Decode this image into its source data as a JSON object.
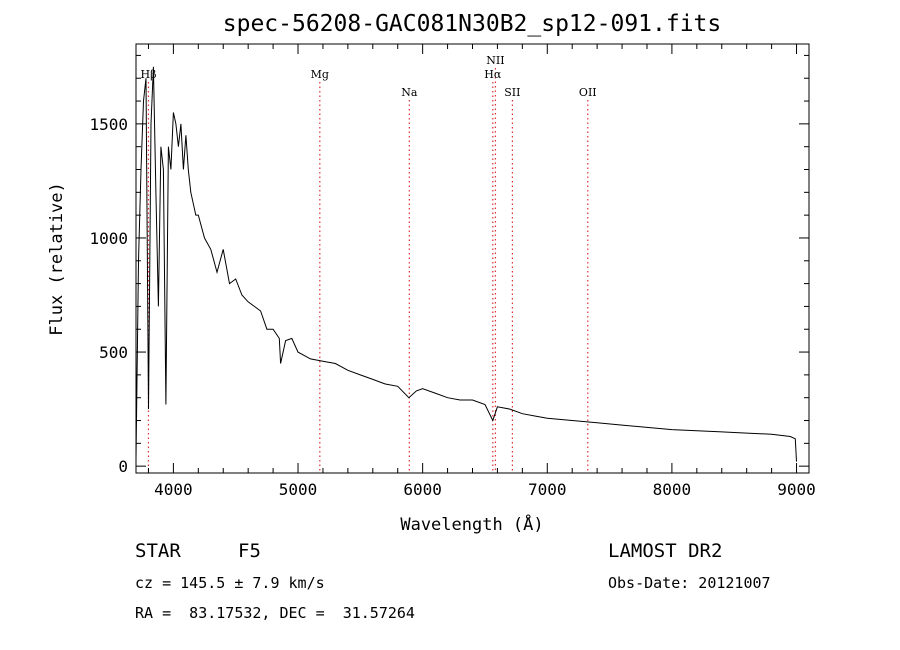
{
  "chart_data": {
    "type": "line",
    "title": "spec-56208-GAC081N30B2_sp12-091.fits",
    "xlabel": "Wavelength (Å)",
    "ylabel": "Flux (relative)",
    "xlim": [
      3700,
      9100
    ],
    "ylim": [
      -30,
      1850
    ],
    "xticks": [
      4000,
      5000,
      6000,
      7000,
      8000,
      9000
    ],
    "yticks": [
      0,
      500,
      1000,
      1500
    ],
    "grid": false,
    "series": [
      {
        "x": [
          3700,
          3720,
          3740,
          3760,
          3780,
          3800,
          3820,
          3840,
          3860,
          3880,
          3900,
          3920,
          3940,
          3960,
          3980,
          4000,
          4020,
          4040,
          4060,
          4080,
          4100,
          4120,
          4140,
          4160,
          4180,
          4200,
          4250,
          4300,
          4350,
          4400,
          4450,
          4500,
          4550,
          4600,
          4650,
          4700,
          4750,
          4800,
          4850,
          4860,
          4900,
          4950,
          5000,
          5100,
          5200,
          5300,
          5400,
          5500,
          5600,
          5700,
          5800,
          5890,
          5950,
          6000,
          6100,
          6200,
          6300,
          6400,
          6500,
          6563,
          6600,
          6700,
          6800,
          6900,
          7000,
          7200,
          7400,
          7600,
          7800,
          8000,
          8200,
          8400,
          8600,
          8800,
          8950,
          8990,
          9000
        ],
        "y": [
          30,
          900,
          1300,
          1600,
          1700,
          250,
          1500,
          1750,
          1200,
          700,
          1400,
          1300,
          270,
          1400,
          1300,
          1550,
          1500,
          1400,
          1500,
          1300,
          1450,
          1300,
          1200,
          1150,
          1100,
          1100,
          1000,
          950,
          850,
          950,
          800,
          820,
          750,
          720,
          700,
          680,
          600,
          600,
          560,
          450,
          550,
          560,
          500,
          470,
          460,
          450,
          420,
          400,
          380,
          360,
          350,
          300,
          330,
          340,
          320,
          300,
          290,
          290,
          270,
          200,
          260,
          250,
          230,
          220,
          210,
          200,
          190,
          180,
          170,
          160,
          155,
          150,
          145,
          140,
          130,
          120,
          20
        ]
      }
    ],
    "lines": [
      {
        "label": "Hβ",
        "x": 3800,
        "row": 1
      },
      {
        "label": "Mg",
        "x": 5175,
        "row": 1
      },
      {
        "label": "Na",
        "x": 5893,
        "row": 2
      },
      {
        "label": "NII",
        "x": 6584,
        "row": 0
      },
      {
        "label": "Hα",
        "x": 6563,
        "row": 1
      },
      {
        "label": "SII",
        "x": 6720,
        "row": 2
      },
      {
        "label": "OII",
        "x": 7325,
        "row": 2
      }
    ],
    "line_color": "#e03030"
  },
  "info": {
    "class_label": "STAR",
    "subclass": "F5",
    "survey": "LAMOST DR2",
    "cz": "cz = 145.5 ± 7.9 km/s",
    "obs_date": "Obs-Date: 20121007",
    "radec": "RA =  83.17532, DEC =  31.57264"
  }
}
